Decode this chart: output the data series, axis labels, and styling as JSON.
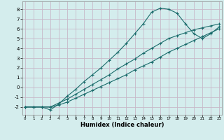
{
  "xlabel": "Humidex (Indice chaleur)",
  "bg_color": "#d4eded",
  "grid_color": "#c8b8c8",
  "line_color": "#1a6b6b",
  "x_ticks": [
    0,
    1,
    2,
    3,
    4,
    5,
    6,
    7,
    8,
    9,
    10,
    11,
    12,
    13,
    14,
    15,
    16,
    17,
    18,
    19,
    20,
    21,
    22,
    23
  ],
  "y_ticks": [
    -2,
    -1,
    0,
    1,
    2,
    3,
    4,
    5,
    6,
    7,
    8
  ],
  "xlim": [
    -0.3,
    23.3
  ],
  "ylim": [
    -2.8,
    8.8
  ],
  "line1_x": [
    0,
    1,
    2,
    3,
    4,
    5,
    6,
    7,
    8,
    9,
    10,
    11,
    12,
    13,
    14,
    15,
    16,
    17,
    18,
    19,
    20,
    21,
    22,
    23
  ],
  "line1_y": [
    -2.0,
    -2.0,
    -2.0,
    -2.3,
    -1.7,
    -0.9,
    -0.2,
    0.6,
    1.3,
    2.0,
    2.8,
    3.6,
    4.5,
    5.5,
    6.5,
    7.7,
    8.1,
    8.0,
    7.6,
    6.5,
    5.5,
    5.0,
    5.5,
    6.2
  ],
  "line2_x": [
    0,
    1,
    2,
    3,
    4,
    5,
    6,
    7,
    8,
    9,
    10,
    11,
    12,
    13,
    14,
    15,
    16,
    17,
    18,
    19,
    20,
    21,
    22,
    23
  ],
  "line2_y": [
    -2.0,
    -2.0,
    -2.0,
    -2.0,
    -1.6,
    -1.2,
    -0.7,
    -0.2,
    0.3,
    0.8,
    1.3,
    1.9,
    2.4,
    2.9,
    3.5,
    4.0,
    4.5,
    5.0,
    5.3,
    5.6,
    5.9,
    6.1,
    6.3,
    6.5
  ],
  "line3_x": [
    0,
    1,
    2,
    3,
    4,
    5,
    6,
    7,
    8,
    9,
    10,
    11,
    12,
    13,
    14,
    15,
    16,
    17,
    18,
    19,
    20,
    21,
    22,
    23
  ],
  "line3_y": [
    -2.0,
    -2.0,
    -2.0,
    -2.0,
    -1.8,
    -1.5,
    -1.1,
    -0.7,
    -0.3,
    0.1,
    0.5,
    0.9,
    1.3,
    1.8,
    2.2,
    2.6,
    3.1,
    3.6,
    4.0,
    4.4,
    4.8,
    5.2,
    5.6,
    6.0
  ]
}
